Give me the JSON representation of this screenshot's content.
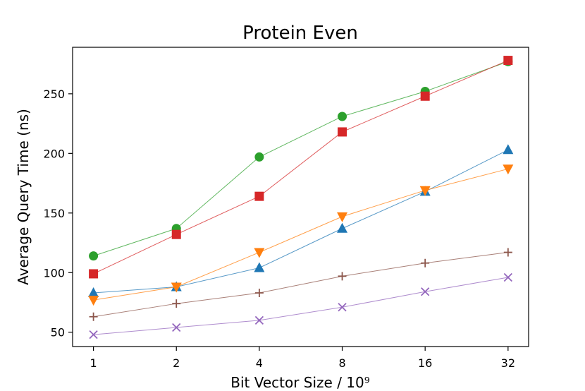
{
  "chart_data": {
    "type": "line",
    "title": "Protein Even",
    "xlabel": "Bit Vector Size / 10⁹",
    "ylabel": "Average Query Time (ns)",
    "x_scale": "log2",
    "categories": [
      "1",
      "2",
      "4",
      "8",
      "16",
      "32"
    ],
    "x": [
      1,
      2,
      4,
      8,
      16,
      32
    ],
    "xlim": [
      0.84,
      38
    ],
    "ylim": [
      38,
      289
    ],
    "yticks": [
      50,
      100,
      150,
      200,
      250
    ],
    "legend": "none",
    "series": [
      {
        "name": "green circles",
        "color": "#2ca02c",
        "marker": "circle",
        "values": [
          114,
          137,
          197,
          231,
          252,
          277
        ]
      },
      {
        "name": "red squares",
        "color": "#d62728",
        "marker": "square",
        "values": [
          99,
          132,
          164,
          218,
          248,
          278
        ]
      },
      {
        "name": "blue triangles up",
        "color": "#1f77b4",
        "marker": "triangle-up",
        "values": [
          83,
          88,
          104,
          137,
          168,
          203
        ]
      },
      {
        "name": "orange triangles down",
        "color": "#ff7f0e",
        "marker": "triangle-down",
        "values": [
          77,
          88,
          117,
          147,
          169,
          187
        ]
      },
      {
        "name": "brown plus",
        "color": "#8c564b",
        "marker": "plus",
        "values": [
          63,
          74,
          83,
          97,
          108,
          117
        ]
      },
      {
        "name": "purple x",
        "color": "#9467bd",
        "marker": "x",
        "values": [
          48,
          54,
          60,
          71,
          84,
          96
        ]
      }
    ]
  }
}
